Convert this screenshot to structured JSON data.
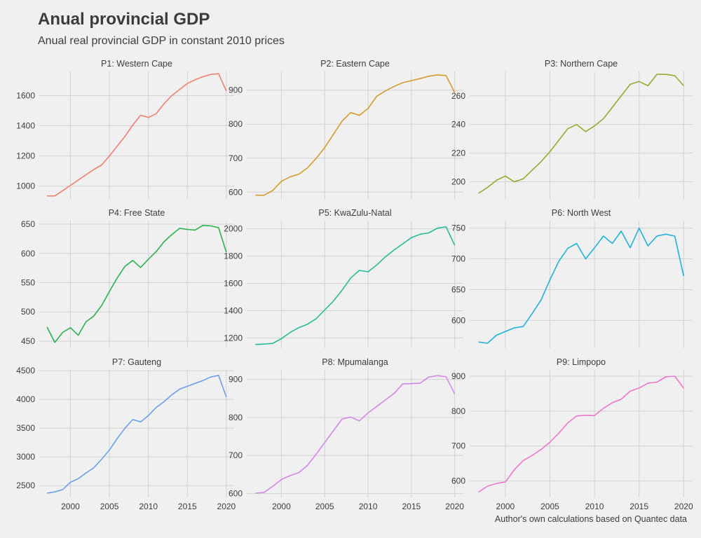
{
  "title": "Anual provincial GDP",
  "subtitle": "Anual real provincial GDP in constant 2010 prices",
  "caption": "Author's own calculations based on Quantec data",
  "chart_data": {
    "type": "line",
    "layout": "facet-grid-3x3",
    "grid": true,
    "legend": "none",
    "xlim": [
      1996,
      2021
    ],
    "x_ticks": [
      2000,
      2005,
      2010,
      2015,
      2020
    ],
    "x": [
      1997,
      1998,
      1999,
      2000,
      2001,
      2002,
      2003,
      2004,
      2005,
      2006,
      2007,
      2008,
      2009,
      2010,
      2011,
      2012,
      2013,
      2014,
      2015,
      2016,
      2017,
      2018,
      2019,
      2020
    ],
    "panels": [
      {
        "name": "P1: Western Cape",
        "color": "#F07F6D",
        "ylim": [
          915,
          1760
        ],
        "y_ticks": [
          1000,
          1200,
          1400,
          1600
        ],
        "values": [
          935,
          935,
          970,
          1005,
          1040,
          1075,
          1110,
          1140,
          1200,
          1265,
          1330,
          1405,
          1470,
          1455,
          1480,
          1545,
          1600,
          1640,
          1680,
          1705,
          1725,
          1740,
          1745,
          1630
        ]
      },
      {
        "name": "P2: Eastern Cape",
        "color": "#D69B2B",
        "ylim": [
          580,
          955
        ],
        "y_ticks": [
          600,
          700,
          800,
          900
        ],
        "values": [
          591,
          591,
          605,
          632,
          645,
          653,
          671,
          699,
          731,
          770,
          809,
          834,
          826,
          846,
          882,
          898,
          911,
          922,
          928,
          934,
          941,
          945,
          943,
          893
        ]
      },
      {
        "name": "P3: Northern Cape",
        "color": "#9AA82D",
        "ylim": [
          188,
          277
        ],
        "y_ticks": [
          200,
          220,
          240,
          260
        ],
        "values": [
          192,
          196,
          201,
          204,
          200,
          202,
          208,
          214,
          221,
          229,
          237,
          240,
          235,
          239,
          244,
          252,
          260,
          268,
          270,
          267,
          275,
          275,
          274,
          267
        ]
      },
      {
        "name": "P4: Free State",
        "color": "#2BB24C",
        "ylim": [
          438,
          656
        ],
        "y_ticks": [
          450,
          500,
          550,
          600,
          650
        ],
        "values": [
          474,
          448,
          465,
          473,
          460,
          483,
          493,
          511,
          535,
          558,
          578,
          588,
          576,
          590,
          603,
          620,
          632,
          643,
          641,
          640,
          648,
          647,
          644,
          602
        ]
      },
      {
        "name": "P5: KwaZulu-Natal",
        "color": "#25BC98",
        "ylim": [
          1125,
          2060
        ],
        "y_ticks": [
          1200,
          1400,
          1600,
          1800,
          2000
        ],
        "values": [
          1152,
          1155,
          1160,
          1195,
          1240,
          1275,
          1300,
          1340,
          1405,
          1470,
          1550,
          1640,
          1695,
          1685,
          1735,
          1795,
          1845,
          1890,
          1935,
          1960,
          1970,
          2005,
          2015,
          1880
        ]
      },
      {
        "name": "P6: North West",
        "color": "#20B2D8",
        "ylim": [
          555,
          762
        ],
        "y_ticks": [
          600,
          650,
          700,
          750
        ],
        "values": [
          565,
          563,
          576,
          582,
          588,
          590,
          611,
          633,
          666,
          696,
          717,
          725,
          700,
          718,
          737,
          725,
          745,
          718,
          750,
          721,
          737,
          740,
          737,
          672
        ]
      },
      {
        "name": "P7: Gauteng",
        "color": "#6C9FEA",
        "ylim": [
          2295,
          4515
        ],
        "y_ticks": [
          2500,
          3000,
          3500,
          4000,
          4500
        ],
        "values": [
          2370,
          2390,
          2430,
          2560,
          2620,
          2720,
          2810,
          2960,
          3120,
          3320,
          3500,
          3650,
          3610,
          3720,
          3860,
          3960,
          4080,
          4180,
          4230,
          4280,
          4330,
          4390,
          4420,
          4040
        ]
      },
      {
        "name": "P8: Mpumalanga",
        "color": "#D486EA",
        "ylim": [
          590,
          925
        ],
        "y_ticks": [
          600,
          700,
          800,
          900
        ],
        "values": [
          601,
          603,
          619,
          637,
          647,
          655,
          674,
          703,
          734,
          765,
          796,
          801,
          791,
          812,
          829,
          846,
          863,
          888,
          889,
          890,
          906,
          910,
          907,
          862
        ]
      },
      {
        "name": "P9: Limpopo",
        "color": "#EE77CC",
        "ylim": [
          553,
          918
        ],
        "y_ticks": [
          600,
          700,
          800,
          900
        ],
        "values": [
          568,
          585,
          593,
          597,
          632,
          658,
          673,
          690,
          711,
          737,
          766,
          786,
          788,
          787,
          808,
          824,
          834,
          857,
          866,
          880,
          883,
          898,
          900,
          865
        ]
      }
    ]
  }
}
